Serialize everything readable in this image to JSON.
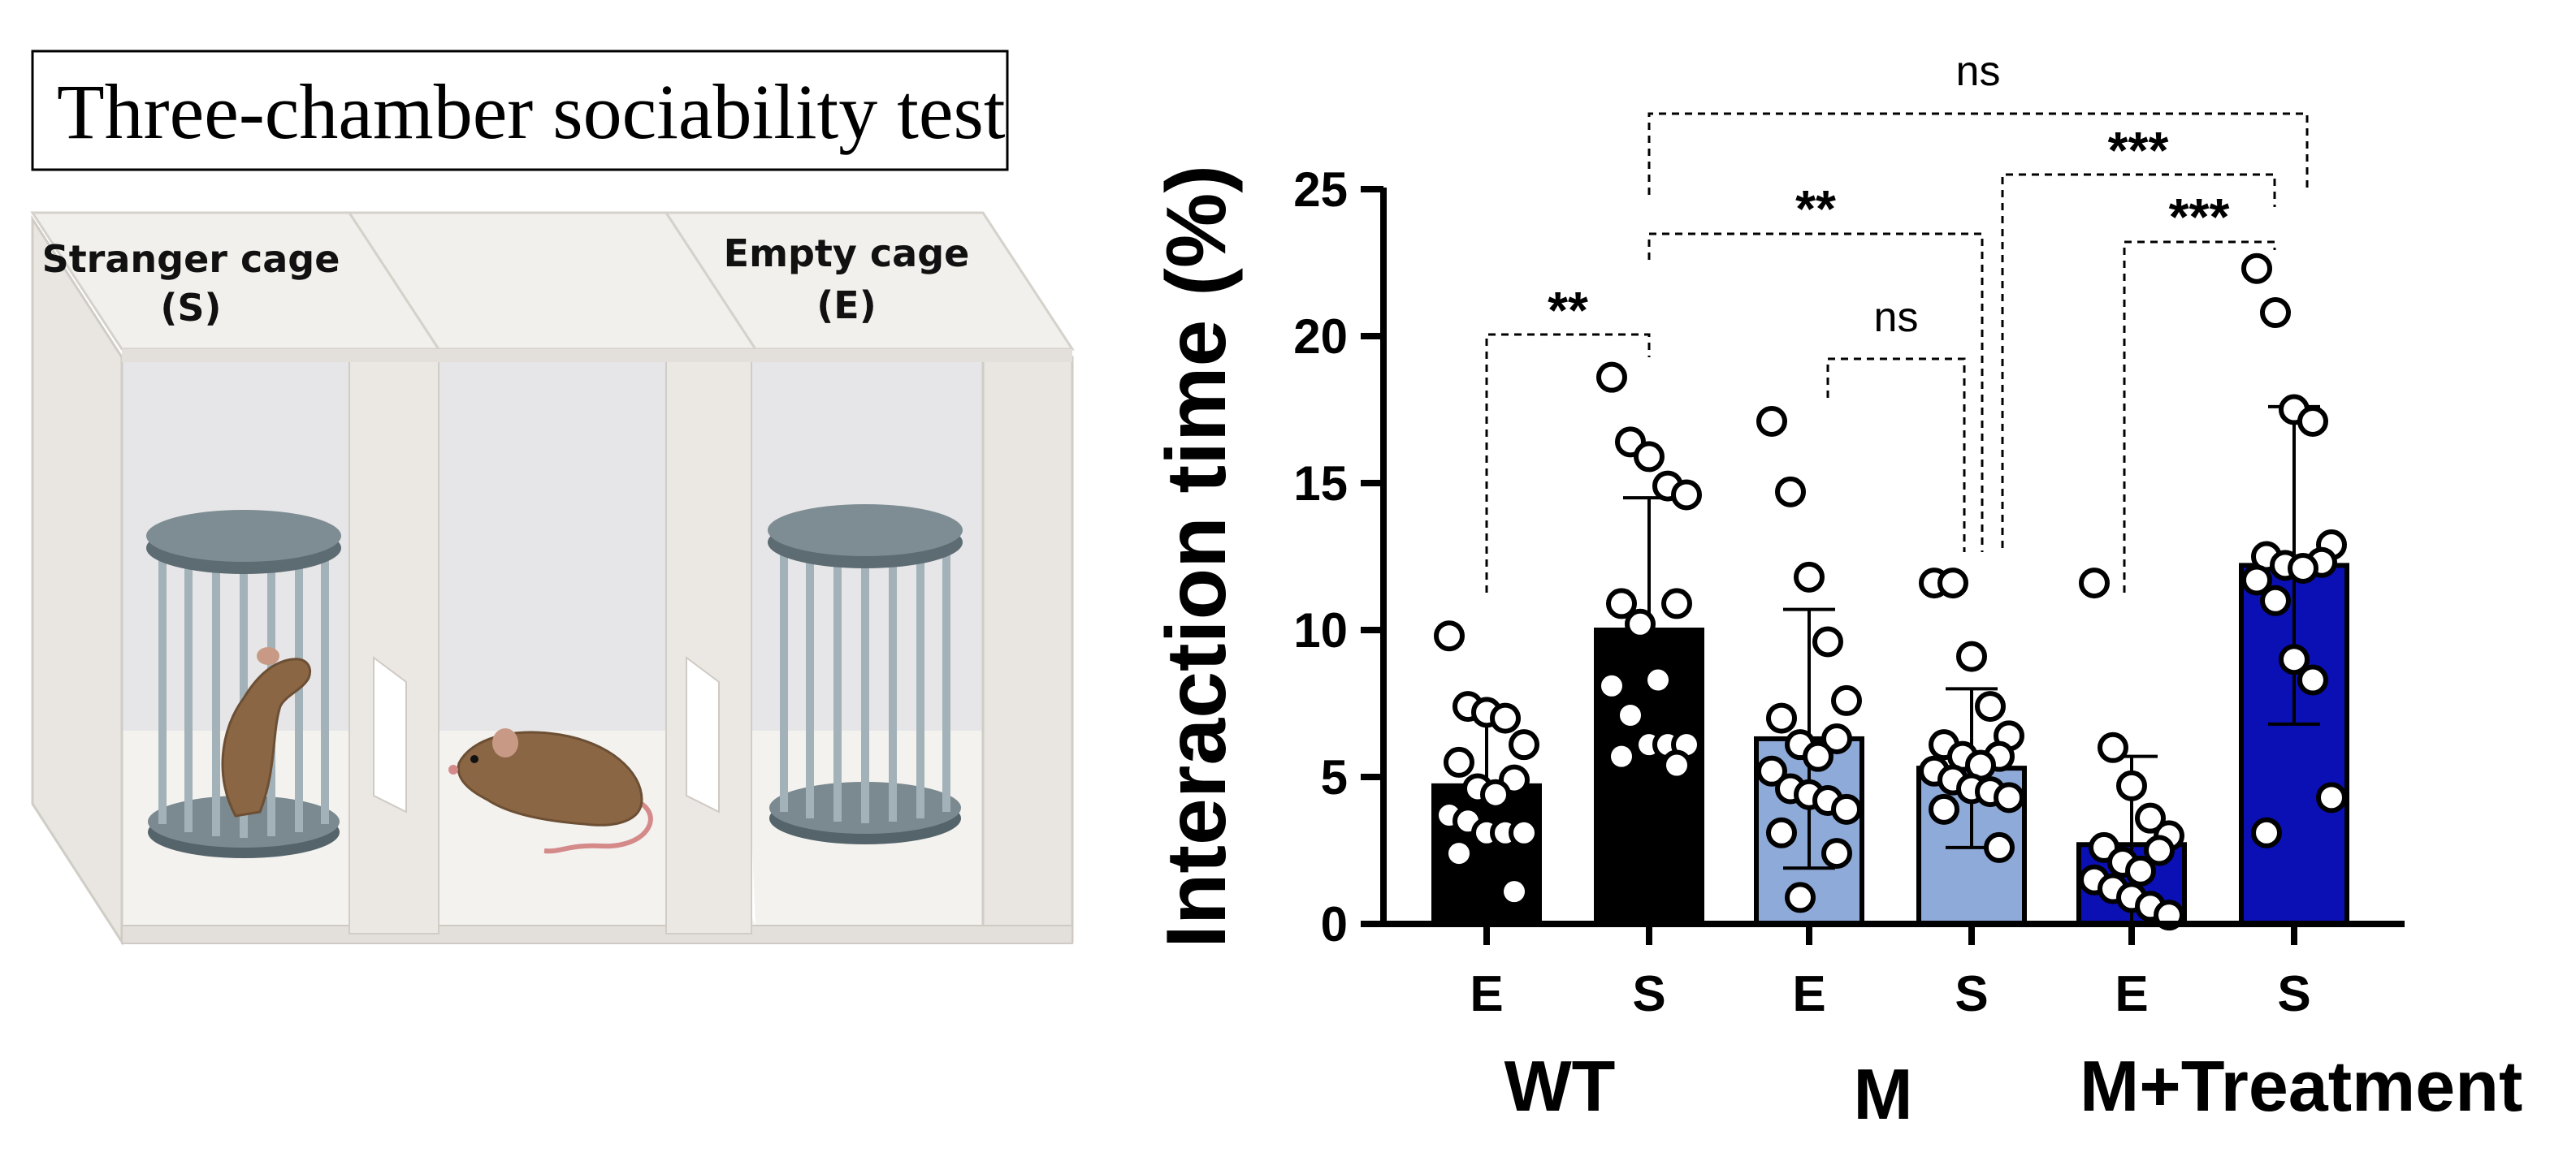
{
  "diagram": {
    "title": "Three-chamber sociability test",
    "stranger_label_line1": "Stranger cage",
    "stranger_label_line2": "(S)",
    "empty_label_line1": "Empty cage",
    "empty_label_line2": "(E)"
  },
  "chart_data": {
    "type": "bar",
    "ylabel": "Interaction time (%)",
    "ylim": [
      0,
      25
    ],
    "yticks": [
      0,
      5,
      10,
      15,
      20,
      25
    ],
    "categories": [
      "E",
      "S",
      "E",
      "S",
      "E",
      "S"
    ],
    "groups": [
      {
        "name": "WT",
        "bars": [
          0,
          1
        ]
      },
      {
        "name": "M",
        "bars": [
          2,
          3
        ]
      },
      {
        "name": "M+Treatment",
        "bars": [
          4,
          5
        ]
      }
    ],
    "values": [
      4.7,
      10.0,
      6.3,
      5.3,
      2.7,
      12.2
    ],
    "sd": [
      2.4,
      4.5,
      4.4,
      2.7,
      3.0,
      5.4
    ],
    "bar_colors": [
      "#000000",
      "#000000",
      "#8eaad8",
      "#8eaad8",
      "#0a10b4",
      "#0a10b4"
    ],
    "points": [
      [
        9.8,
        7.4,
        7.2,
        7.0,
        6.1,
        5.5,
        4.9,
        4.6,
        4.4,
        3.7,
        3.5,
        3.1,
        3.1,
        3.1,
        2.4,
        1.1
      ],
      [
        18.6,
        16.4,
        15.9,
        14.9,
        14.6,
        10.9,
        10.9,
        10.2,
        8.3,
        8.1,
        7.1,
        6.1,
        6.1,
        6.1,
        5.7,
        5.4
      ],
      [
        17.1,
        14.7,
        11.8,
        9.6,
        7.6,
        7.0,
        6.3,
        6.1,
        5.7,
        5.2,
        4.6,
        4.4,
        4.2,
        3.9,
        3.1,
        2.4,
        0.9
      ],
      [
        11.6,
        11.6,
        9.1,
        7.4,
        6.4,
        6.1,
        5.7,
        5.7,
        5.4,
        5.2,
        4.9,
        4.6,
        4.5,
        4.3,
        3.9,
        2.6
      ],
      [
        11.6,
        6.0,
        4.7,
        3.6,
        3.0,
        2.6,
        2.5,
        2.1,
        1.8,
        1.5,
        1.2,
        0.9,
        0.6,
        0.3
      ],
      [
        22.3,
        20.8,
        17.5,
        17.1,
        12.9,
        12.5,
        12.3,
        12.2,
        12.1,
        11.7,
        11.0,
        9.0,
        8.3,
        4.3,
        3.1
      ]
    ],
    "comparisons": [
      {
        "from": 0,
        "to": 1,
        "label": "**"
      },
      {
        "from": 1,
        "to": 3,
        "label": "**"
      },
      {
        "from": 2,
        "to": 3,
        "label": "ns"
      },
      {
        "from": 1,
        "to": 5,
        "label": "ns"
      },
      {
        "from": 3,
        "to": 5,
        "label": "***"
      },
      {
        "from": 4,
        "to": 5,
        "label": "***"
      }
    ]
  }
}
